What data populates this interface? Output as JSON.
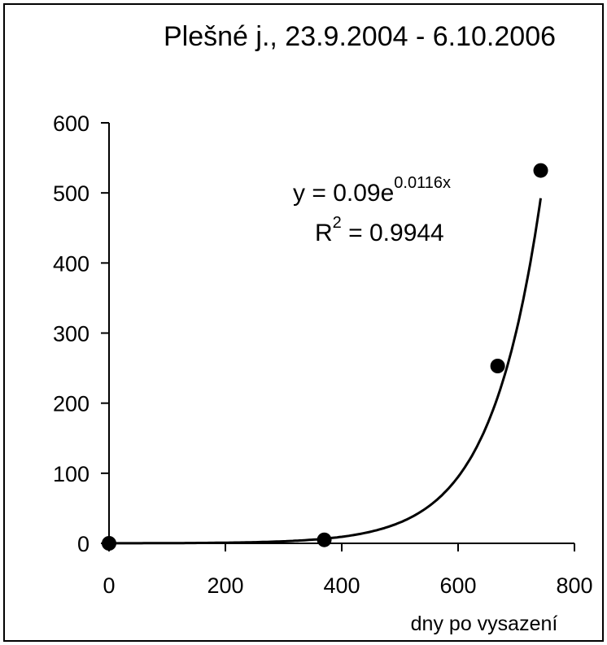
{
  "chart_data": {
    "type": "scatter",
    "title": "Plešné j., 23.9.2004 - 6.10.2006",
    "xlabel": "dny po vysazení",
    "ylabel": "",
    "xlim": [
      0,
      800
    ],
    "ylim": [
      0,
      600
    ],
    "x_ticks": [
      "0",
      "200",
      "400",
      "600",
      "800"
    ],
    "y_ticks": [
      "0",
      "100",
      "200",
      "300",
      "400",
      "500",
      "600"
    ],
    "grid": false,
    "series": [
      {
        "points": [
          {
            "x": 0,
            "y": 0
          },
          {
            "x": 370,
            "y": 5
          },
          {
            "x": 668,
            "y": 253
          },
          {
            "x": 742,
            "y": 532
          }
        ],
        "color": "#000000"
      }
    ],
    "trendline": {
      "type": "exponential",
      "a": 0.09,
      "b": 0.0116,
      "x_range": [
        0,
        742
      ],
      "equation_base": "y = 0.09e",
      "equation_exponent": "0.0116x",
      "r2_label": "R",
      "r2_superscript": "2",
      "r2_value": " = 0.9944"
    }
  }
}
